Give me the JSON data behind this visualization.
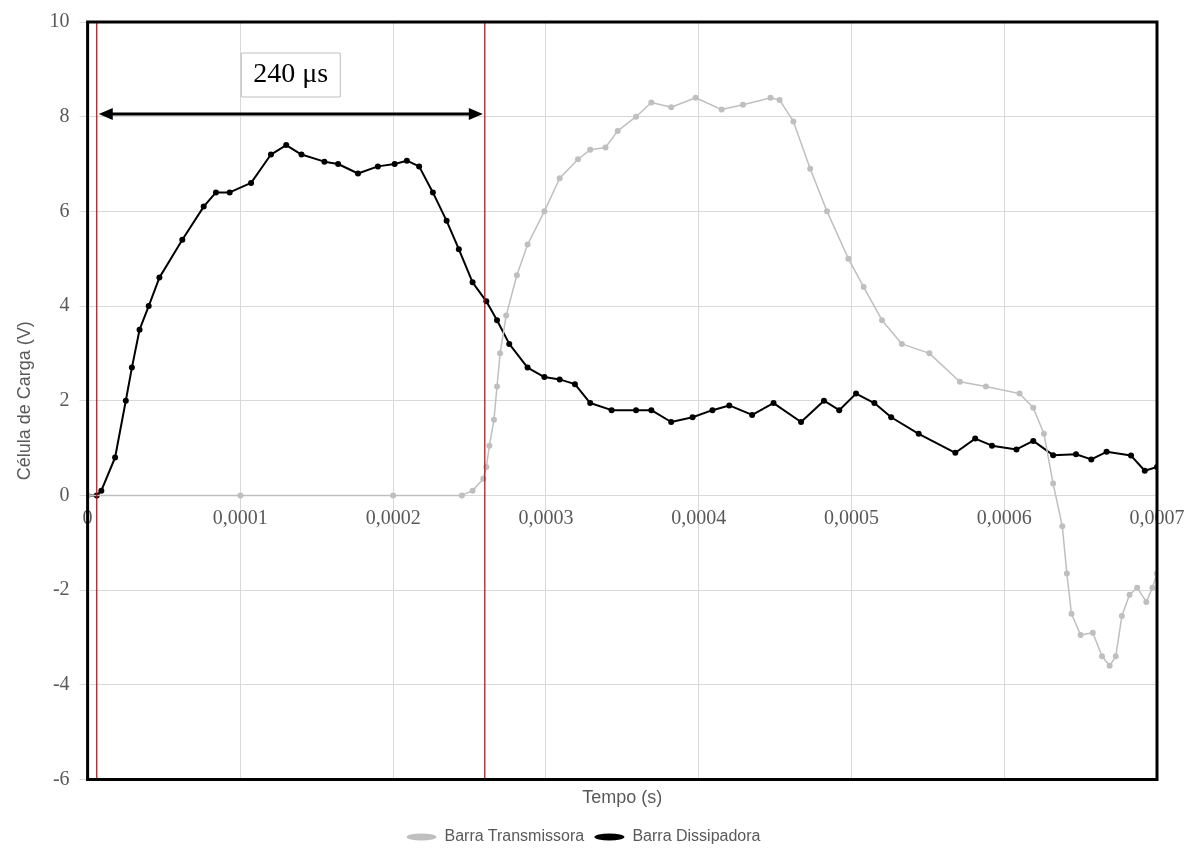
{
  "chart_data": {
    "type": "line",
    "xlabel": "Tempo (s)",
    "ylabel": "Célula de Carga (V)",
    "xlim": [
      0,
      0.0007
    ],
    "ylim": [
      -6,
      10
    ],
    "xticks": [
      0,
      {
        "value": 0.0001,
        "label": "0,0001"
      },
      {
        "value": 0.0002,
        "label": "0,0002"
      },
      {
        "value": 0.0003,
        "label": "0,0003"
      },
      {
        "value": 0.0004,
        "label": "0,0004"
      },
      {
        "value": 0.0005,
        "label": "0,0005"
      },
      {
        "value": 0.0006,
        "label": "0,0006"
      },
      {
        "value": 0.0007,
        "label": "0,0007"
      }
    ],
    "yticks": [
      -6,
      -4,
      -2,
      0,
      2,
      4,
      6,
      8,
      10
    ],
    "grid": true,
    "legend": "bottom",
    "marker": "circle",
    "line_style": "solid",
    "ref_lines": [
      {
        "axis": "x",
        "value": 6e-06,
        "color": "#c00000"
      },
      {
        "axis": "x",
        "value": 0.00026,
        "color": "#c00000"
      }
    ],
    "annotations": [
      "240 μs"
    ],
    "series": [
      {
        "name": "Barra Transmissora",
        "color": "#bfbfbf",
        "x": [
          0,
          0.0001,
          0.0002,
          0.000245,
          0.000252,
          0.000259,
          0.000261,
          0.000263,
          0.000266,
          0.000268,
          0.00027,
          0.000274,
          0.000281,
          0.000288,
          0.000299,
          0.000309,
          0.000321,
          0.000329,
          0.000339,
          0.000347,
          0.000359,
          0.000369,
          0.000382,
          0.000398,
          0.000415,
          0.000429,
          0.000447,
          0.000453,
          0.000462,
          0.000473,
          0.000484,
          0.000498,
          0.000508,
          0.00052,
          0.000533,
          0.000551,
          0.000571,
          0.000588,
          0.00061,
          0.000619,
          0.000626,
          0.000632,
          0.000638,
          0.000641,
          0.000644,
          0.00065,
          0.000658,
          0.000664,
          0.000669,
          0.000673,
          0.000677,
          0.000682,
          0.000687,
          0.000693,
          0.000697,
          0.0007
        ],
        "values": [
          0,
          0,
          0,
          0,
          0.1,
          0.35,
          0.6,
          1.05,
          1.6,
          2.3,
          3.0,
          3.8,
          4.65,
          5.3,
          6.0,
          6.7,
          7.1,
          7.3,
          7.35,
          7.7,
          8.0,
          8.3,
          8.2,
          8.4,
          8.15,
          8.25,
          8.4,
          8.35,
          7.9,
          6.9,
          6.0,
          5.0,
          4.4,
          3.7,
          3.2,
          3.0,
          2.4,
          2.3,
          2.15,
          1.85,
          1.3,
          0.25,
          -0.65,
          -1.65,
          -2.5,
          -2.95,
          -2.9,
          -3.4,
          -3.6,
          -3.4,
          -2.55,
          -2.1,
          -1.95,
          -2.25,
          -1.95,
          -1.65
        ]
      },
      {
        "name": "Barra Dissipadora",
        "color": "#000000",
        "x": [
          0,
          6e-06,
          9e-06,
          1.8e-05,
          2.5e-05,
          2.9e-05,
          3.4e-05,
          4e-05,
          4.7e-05,
          6.2e-05,
          7.6e-05,
          8.4e-05,
          9.3e-05,
          0.000107,
          0.00012,
          0.00013,
          0.00014,
          0.000155,
          0.000164,
          0.000177,
          0.00019,
          0.000201,
          0.000209,
          0.000217,
          0.000226,
          0.000235,
          0.000243,
          0.000252,
          0.000261,
          0.000268,
          0.000276,
          0.000288,
          0.000299,
          0.000309,
          0.000319,
          0.000329,
          0.000343,
          0.000359,
          0.000369,
          0.000382,
          0.000396,
          0.000409,
          0.00042,
          0.000435,
          0.000449,
          0.000467,
          0.000482,
          0.000492,
          0.000503,
          0.000515,
          0.000526,
          0.000544,
          0.000568,
          0.000581,
          0.000592,
          0.000608,
          0.000619,
          0.000632,
          0.000647,
          0.000657,
          0.000667,
          0.000683,
          0.000692,
          0.0007
        ],
        "values": [
          0,
          0,
          0.1,
          0.8,
          2.0,
          2.7,
          3.5,
          4.0,
          4.6,
          5.4,
          6.1,
          6.4,
          6.4,
          6.6,
          7.2,
          7.4,
          7.2,
          7.05,
          7.0,
          6.8,
          6.95,
          7.0,
          7.07,
          6.95,
          6.4,
          5.8,
          5.2,
          4.5,
          4.1,
          3.7,
          3.2,
          2.7,
          2.5,
          2.45,
          2.35,
          1.95,
          1.8,
          1.8,
          1.8,
          1.55,
          1.65,
          1.8,
          1.9,
          1.7,
          1.95,
          1.55,
          2.0,
          1.8,
          2.15,
          1.95,
          1.65,
          1.3,
          0.9,
          1.2,
          1.05,
          0.97,
          1.15,
          0.85,
          0.87,
          0.76,
          0.92,
          0.84,
          0.52,
          0.6
        ]
      }
    ]
  }
}
